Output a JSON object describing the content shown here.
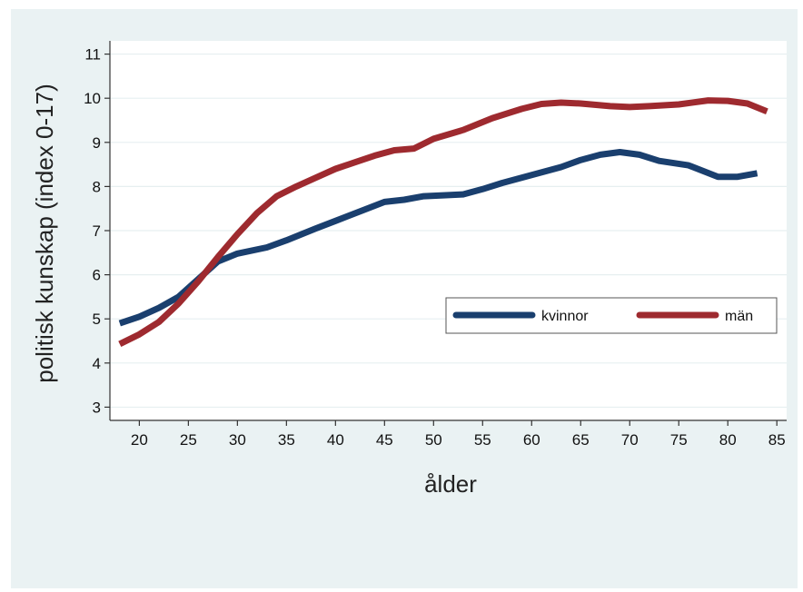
{
  "chart_data": {
    "type": "line",
    "title": "",
    "xlabel": "ålder",
    "ylabel": "politisk kunskap (index 0-17)",
    "xlim": [
      17,
      86
    ],
    "ylim": [
      2.7,
      11.3
    ],
    "x_ticks": [
      20,
      25,
      30,
      35,
      40,
      45,
      50,
      55,
      60,
      65,
      70,
      75,
      80,
      85
    ],
    "y_ticks": [
      3,
      4,
      5,
      6,
      7,
      8,
      9,
      10,
      11
    ],
    "grid": "horizontal",
    "legend_position": "right",
    "series": [
      {
        "name": "kvinnor",
        "color": "#1a3f6e",
        "points": [
          [
            18,
            4.9
          ],
          [
            20,
            5.05
          ],
          [
            22,
            5.25
          ],
          [
            24,
            5.5
          ],
          [
            26,
            5.9
          ],
          [
            28,
            6.3
          ],
          [
            30,
            6.48
          ],
          [
            33,
            6.62
          ],
          [
            35,
            6.78
          ],
          [
            38,
            7.05
          ],
          [
            40,
            7.22
          ],
          [
            43,
            7.48
          ],
          [
            45,
            7.65
          ],
          [
            47,
            7.7
          ],
          [
            49,
            7.78
          ],
          [
            51,
            7.8
          ],
          [
            53,
            7.82
          ],
          [
            55,
            7.94
          ],
          [
            57,
            8.08
          ],
          [
            60,
            8.26
          ],
          [
            63,
            8.44
          ],
          [
            65,
            8.6
          ],
          [
            67,
            8.72
          ],
          [
            69,
            8.78
          ],
          [
            71,
            8.72
          ],
          [
            73,
            8.58
          ],
          [
            76,
            8.48
          ],
          [
            79,
            8.22
          ],
          [
            81,
            8.22
          ],
          [
            83,
            8.3
          ]
        ]
      },
      {
        "name": "män",
        "color": "#9e2a2f",
        "points": [
          [
            18,
            4.43
          ],
          [
            20,
            4.65
          ],
          [
            22,
            4.93
          ],
          [
            24,
            5.35
          ],
          [
            26,
            5.85
          ],
          [
            28,
            6.4
          ],
          [
            30,
            6.92
          ],
          [
            32,
            7.4
          ],
          [
            34,
            7.78
          ],
          [
            36,
            8.0
          ],
          [
            38,
            8.2
          ],
          [
            40,
            8.4
          ],
          [
            42,
            8.55
          ],
          [
            44,
            8.7
          ],
          [
            46,
            8.82
          ],
          [
            48,
            8.86
          ],
          [
            50,
            9.08
          ],
          [
            53,
            9.28
          ],
          [
            56,
            9.55
          ],
          [
            59,
            9.76
          ],
          [
            61,
            9.87
          ],
          [
            63,
            9.9
          ],
          [
            65,
            9.88
          ],
          [
            68,
            9.82
          ],
          [
            70,
            9.8
          ],
          [
            72,
            9.82
          ],
          [
            75,
            9.86
          ],
          [
            78,
            9.95
          ],
          [
            80,
            9.94
          ],
          [
            82,
            9.88
          ],
          [
            84,
            9.7
          ]
        ]
      }
    ],
    "legend": {
      "entries": [
        "kvinnor",
        "män"
      ]
    }
  },
  "colors": {
    "background": "#eaf2f3",
    "plot_background": "#ffffff",
    "grid": "#e6eff0",
    "axis": "#333333"
  }
}
